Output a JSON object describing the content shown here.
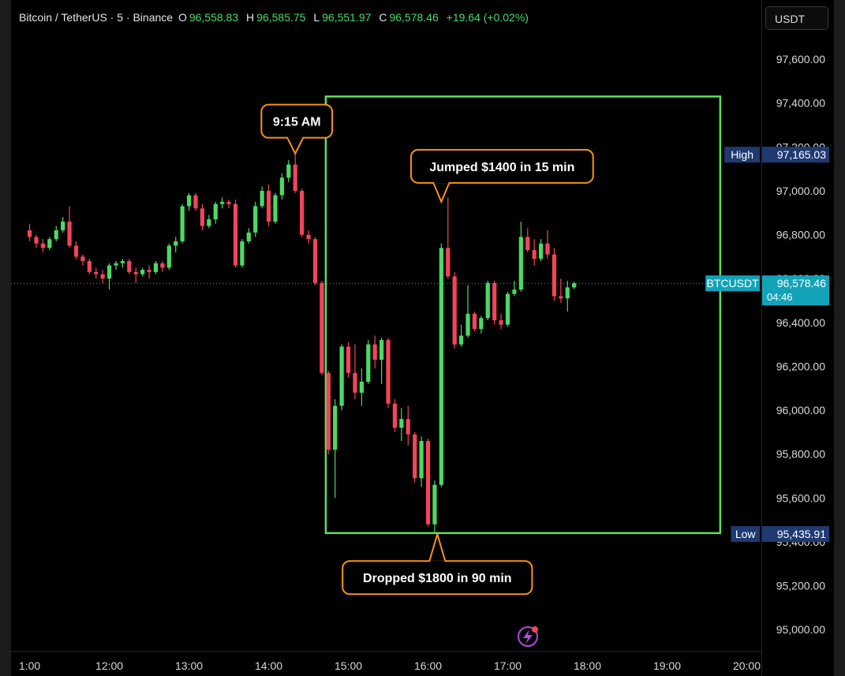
{
  "header": {
    "symbol": "Bitcoin / TetherUS · 5 · Binance",
    "o_label": "O",
    "o_value": "96,558.83",
    "h_label": "H",
    "h_value": "96,585.75",
    "l_label": "L",
    "l_value": "96,551.97",
    "c_label": "C",
    "c_value": "96,578.46",
    "change": "+19.64 (+0.02%)"
  },
  "currency_button": "USDT",
  "colors": {
    "up": "#4cd964",
    "down": "#f2455a",
    "box": "#5ee05e",
    "callout": "#f7931a",
    "high_low_tag": "#1f3a70",
    "price_tag": "#12a3b8"
  },
  "chart_data": {
    "type": "candlestick",
    "x_ticks": [
      "1:00",
      "12:00",
      "13:00",
      "14:00",
      "15:00",
      "16:00",
      "17:00",
      "18:00",
      "19:00",
      "20:00"
    ],
    "y_ticks": [
      97600,
      97400,
      97200,
      97000,
      96800,
      96600,
      96400,
      96200,
      96000,
      95800,
      95600,
      95400,
      95200,
      95000
    ],
    "y_tick_labels": [
      "97,600.00",
      "97,400.00",
      "97,200.00",
      "97,000.00",
      "96,800.00",
      "96,600.00",
      "96,400.00",
      "96,200.00",
      "96,000.00",
      "95,800.00",
      "95,600.00",
      "95,400.00",
      "95,200.00",
      "95,000.00"
    ],
    "y_range": [
      94900,
      97870
    ],
    "x_range_minutes": [
      646,
      1211
    ],
    "candles": [
      {
        "t": 660,
        "o": 96820,
        "h": 96850,
        "l": 96770,
        "c": 96790
      },
      {
        "t": 665,
        "o": 96790,
        "h": 96800,
        "l": 96740,
        "c": 96760
      },
      {
        "t": 670,
        "o": 96760,
        "h": 96780,
        "l": 96720,
        "c": 96740
      },
      {
        "t": 675,
        "o": 96740,
        "h": 96790,
        "l": 96730,
        "c": 96780
      },
      {
        "t": 680,
        "o": 96780,
        "h": 96840,
        "l": 96770,
        "c": 96820
      },
      {
        "t": 685,
        "o": 96820,
        "h": 96880,
        "l": 96810,
        "c": 96860
      },
      {
        "t": 690,
        "o": 96860,
        "h": 96930,
        "l": 96740,
        "c": 96750
      },
      {
        "t": 695,
        "o": 96750,
        "h": 96770,
        "l": 96690,
        "c": 96700
      },
      {
        "t": 700,
        "o": 96700,
        "h": 96710,
        "l": 96660,
        "c": 96680
      },
      {
        "t": 705,
        "o": 96680,
        "h": 96690,
        "l": 96620,
        "c": 96630
      },
      {
        "t": 710,
        "o": 96630,
        "h": 96650,
        "l": 96600,
        "c": 96620
      },
      {
        "t": 715,
        "o": 96620,
        "h": 96640,
        "l": 96580,
        "c": 96600
      },
      {
        "t": 720,
        "o": 96600,
        "h": 96670,
        "l": 96550,
        "c": 96660
      },
      {
        "t": 725,
        "o": 96660,
        "h": 96680,
        "l": 96640,
        "c": 96670
      },
      {
        "t": 730,
        "o": 96670,
        "h": 96690,
        "l": 96650,
        "c": 96680
      },
      {
        "t": 735,
        "o": 96680,
        "h": 96690,
        "l": 96620,
        "c": 96630
      },
      {
        "t": 740,
        "o": 96630,
        "h": 96650,
        "l": 96580,
        "c": 96620
      },
      {
        "t": 745,
        "o": 96620,
        "h": 96650,
        "l": 96610,
        "c": 96640
      },
      {
        "t": 750,
        "o": 96640,
        "h": 96660,
        "l": 96600,
        "c": 96630
      },
      {
        "t": 755,
        "o": 96630,
        "h": 96680,
        "l": 96620,
        "c": 96670
      },
      {
        "t": 760,
        "o": 96670,
        "h": 96680,
        "l": 96630,
        "c": 96650
      },
      {
        "t": 765,
        "o": 96650,
        "h": 96760,
        "l": 96640,
        "c": 96750
      },
      {
        "t": 770,
        "o": 96750,
        "h": 96790,
        "l": 96720,
        "c": 96770
      },
      {
        "t": 775,
        "o": 96770,
        "h": 96940,
        "l": 96760,
        "c": 96930
      },
      {
        "t": 780,
        "o": 96930,
        "h": 96990,
        "l": 96910,
        "c": 96980
      },
      {
        "t": 785,
        "o": 96980,
        "h": 96990,
        "l": 96910,
        "c": 96920
      },
      {
        "t": 790,
        "o": 96920,
        "h": 96940,
        "l": 96820,
        "c": 96840
      },
      {
        "t": 795,
        "o": 96840,
        "h": 96890,
        "l": 96830,
        "c": 96870
      },
      {
        "t": 800,
        "o": 96870,
        "h": 96950,
        "l": 96850,
        "c": 96940
      },
      {
        "t": 805,
        "o": 96940,
        "h": 96970,
        "l": 96920,
        "c": 96950
      },
      {
        "t": 810,
        "o": 96950,
        "h": 96960,
        "l": 96920,
        "c": 96940
      },
      {
        "t": 815,
        "o": 96940,
        "h": 96960,
        "l": 96650,
        "c": 96660
      },
      {
        "t": 820,
        "o": 96660,
        "h": 96780,
        "l": 96650,
        "c": 96770
      },
      {
        "t": 825,
        "o": 96770,
        "h": 96830,
        "l": 96760,
        "c": 96810
      },
      {
        "t": 830,
        "o": 96810,
        "h": 96950,
        "l": 96790,
        "c": 96930
      },
      {
        "t": 835,
        "o": 96930,
        "h": 97020,
        "l": 96920,
        "c": 97000
      },
      {
        "t": 840,
        "o": 97000,
        "h": 97030,
        "l": 96840,
        "c": 96860
      },
      {
        "t": 845,
        "o": 96860,
        "h": 96990,
        "l": 96850,
        "c": 96980
      },
      {
        "t": 850,
        "o": 96980,
        "h": 97080,
        "l": 96960,
        "c": 97060
      },
      {
        "t": 855,
        "o": 97060,
        "h": 97140,
        "l": 97040,
        "c": 97120
      },
      {
        "t": 860,
        "o": 97120,
        "h": 97165,
        "l": 96990,
        "c": 97000
      },
      {
        "t": 865,
        "o": 97000,
        "h": 97010,
        "l": 96790,
        "c": 96800
      },
      {
        "t": 870,
        "o": 96800,
        "h": 96820,
        "l": 96760,
        "c": 96780
      },
      {
        "t": 875,
        "o": 96780,
        "h": 96790,
        "l": 96570,
        "c": 96580
      },
      {
        "t": 880,
        "o": 96580,
        "h": 96590,
        "l": 96160,
        "c": 96170
      },
      {
        "t": 885,
        "o": 96170,
        "h": 96180,
        "l": 95800,
        "c": 95820
      },
      {
        "t": 890,
        "o": 95820,
        "h": 96050,
        "l": 95600,
        "c": 96020
      },
      {
        "t": 895,
        "o": 96020,
        "h": 96300,
        "l": 96000,
        "c": 96290
      },
      {
        "t": 900,
        "o": 96290,
        "h": 96310,
        "l": 96150,
        "c": 96170
      },
      {
        "t": 905,
        "o": 96170,
        "h": 96300,
        "l": 96050,
        "c": 96080
      },
      {
        "t": 910,
        "o": 96080,
        "h": 96190,
        "l": 96020,
        "c": 96130
      },
      {
        "t": 915,
        "o": 96130,
        "h": 96320,
        "l": 96120,
        "c": 96300
      },
      {
        "t": 920,
        "o": 96300,
        "h": 96340,
        "l": 96190,
        "c": 96230
      },
      {
        "t": 925,
        "o": 96230,
        "h": 96330,
        "l": 96120,
        "c": 96320
      },
      {
        "t": 930,
        "o": 96320,
        "h": 96330,
        "l": 96010,
        "c": 96030
      },
      {
        "t": 935,
        "o": 96030,
        "h": 96050,
        "l": 95900,
        "c": 95920
      },
      {
        "t": 940,
        "o": 95920,
        "h": 96010,
        "l": 95860,
        "c": 95960
      },
      {
        "t": 945,
        "o": 95960,
        "h": 96020,
        "l": 95840,
        "c": 95890
      },
      {
        "t": 950,
        "o": 95890,
        "h": 95900,
        "l": 95670,
        "c": 95690
      },
      {
        "t": 955,
        "o": 95690,
        "h": 95880,
        "l": 95650,
        "c": 95860
      },
      {
        "t": 960,
        "o": 95860,
        "h": 95870,
        "l": 95470,
        "c": 95480
      },
      {
        "t": 965,
        "o": 95480,
        "h": 95680,
        "l": 95436,
        "c": 95660
      },
      {
        "t": 970,
        "o": 95660,
        "h": 96760,
        "l": 95650,
        "c": 96740
      },
      {
        "t": 975,
        "o": 96740,
        "h": 96970,
        "l": 96600,
        "c": 96610
      },
      {
        "t": 980,
        "o": 96610,
        "h": 96630,
        "l": 96280,
        "c": 96300
      },
      {
        "t": 985,
        "o": 96300,
        "h": 96390,
        "l": 96290,
        "c": 96340
      },
      {
        "t": 990,
        "o": 96340,
        "h": 96570,
        "l": 96330,
        "c": 96440
      },
      {
        "t": 995,
        "o": 96440,
        "h": 96450,
        "l": 96360,
        "c": 96370
      },
      {
        "t": 1000,
        "o": 96370,
        "h": 96430,
        "l": 96350,
        "c": 96420
      },
      {
        "t": 1005,
        "o": 96420,
        "h": 96590,
        "l": 96410,
        "c": 96580
      },
      {
        "t": 1010,
        "o": 96580,
        "h": 96590,
        "l": 96390,
        "c": 96410
      },
      {
        "t": 1015,
        "o": 96410,
        "h": 96440,
        "l": 96370,
        "c": 96390
      },
      {
        "t": 1020,
        "o": 96390,
        "h": 96540,
        "l": 96380,
        "c": 96530
      },
      {
        "t": 1025,
        "o": 96530,
        "h": 96590,
        "l": 96520,
        "c": 96550
      },
      {
        "t": 1030,
        "o": 96550,
        "h": 96860,
        "l": 96540,
        "c": 96790
      },
      {
        "t": 1035,
        "o": 96790,
        "h": 96830,
        "l": 96720,
        "c": 96730
      },
      {
        "t": 1040,
        "o": 96730,
        "h": 96780,
        "l": 96660,
        "c": 96690
      },
      {
        "t": 1045,
        "o": 96690,
        "h": 96780,
        "l": 96680,
        "c": 96760
      },
      {
        "t": 1050,
        "o": 96760,
        "h": 96820,
        "l": 96690,
        "c": 96710
      },
      {
        "t": 1055,
        "o": 96710,
        "h": 96740,
        "l": 96500,
        "c": 96520
      },
      {
        "t": 1060,
        "o": 96520,
        "h": 96600,
        "l": 96490,
        "c": 96510
      },
      {
        "t": 1065,
        "o": 96510,
        "h": 96590,
        "l": 96450,
        "c": 96560
      },
      {
        "t": 1070,
        "o": 96560,
        "h": 96585.75,
        "l": 96551.97,
        "c": 96578.46
      }
    ],
    "current_price": 96578.46,
    "high": 97165.03,
    "low": 95435.91,
    "tags": {
      "high_label": "High",
      "high_value": "97,165.03",
      "low_label": "Low",
      "low_value": "95,435.91",
      "symbol_label": "BTCUSDT",
      "price_value": "96,578.46",
      "countdown": "04:46"
    },
    "highlight_box": {
      "t_start": 883,
      "t_end": 1180,
      "y_top": 97430,
      "y_bottom": 95440
    },
    "annotations": [
      {
        "text": "9:15 AM",
        "anchor_t": 860,
        "anchor_y": 97170,
        "offset_x": 2,
        "offset_y": -20,
        "box_above": true
      },
      {
        "text": "Jumped $1400 in 15 min",
        "anchor_t": 970,
        "anchor_y": 96950,
        "offset_x": 77,
        "offset_y": -24,
        "box_above": true
      },
      {
        "text": "Dropped $1800 in 90 min",
        "anchor_t": 967,
        "anchor_y": 95435,
        "offset_x": 0,
        "offset_y": 34,
        "box_above": false
      }
    ]
  }
}
